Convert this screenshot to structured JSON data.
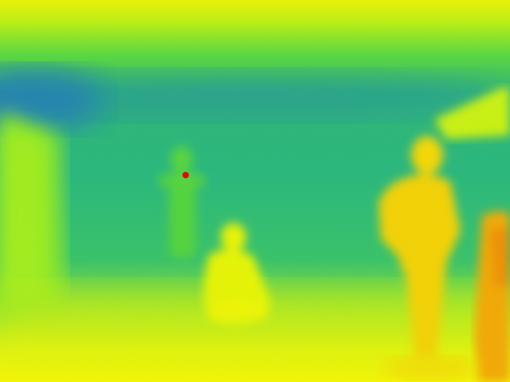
{
  "image": {
    "kind": "thermal-camera-frame",
    "palette": {
      "cool": "#1e6fd0",
      "cool_mid": "#22b37a",
      "mid": "#4bd23b",
      "warm_mid": "#9ef020",
      "warm": "#f6f500",
      "hot": "#f5a000",
      "hottest": "#e00000"
    },
    "subjects": [
      {
        "name": "standing-person-right",
        "temperature_level": "warm"
      },
      {
        "name": "crouching-person-center",
        "temperature_level": "warm_mid"
      },
      {
        "name": "faint-standing-person-left",
        "temperature_level": "mid"
      },
      {
        "name": "person-edge-right",
        "temperature_level": "hot"
      },
      {
        "name": "hotspot-point",
        "temperature_level": "hottest"
      }
    ]
  }
}
